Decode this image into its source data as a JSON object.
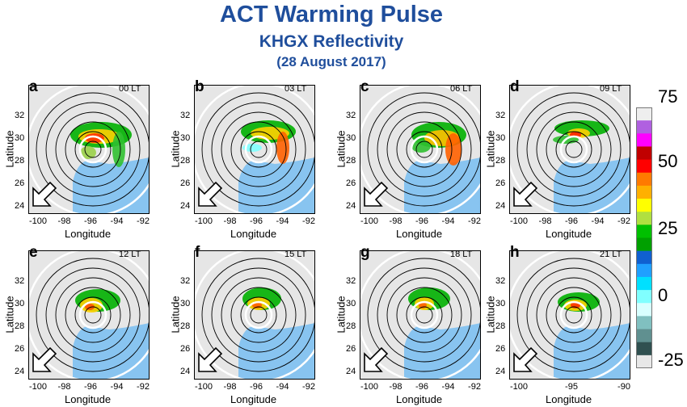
{
  "title": "ACT Warming Pulse",
  "subtitle": "KHGX Reflectivity",
  "date": "(28 August 2017)",
  "xlabel": "Longitude",
  "ylabel": "Latitude",
  "y_ticks": [
    "32",
    "30",
    "28",
    "26",
    "24"
  ],
  "colorbar": {
    "labels": [
      "75",
      "50",
      "25",
      "0",
      "-25"
    ],
    "colors": [
      "#eeeeee",
      "#b060e0",
      "#ff00ff",
      "#c00000",
      "#ff0000",
      "#ff7a00",
      "#ffb000",
      "#ffff00",
      "#b0e040",
      "#00c000",
      "#00a000",
      "#1060d0",
      "#20a0ff",
      "#00e0ff",
      "#80ffff",
      "#d8ffff",
      "#80c0c0",
      "#609090",
      "#305050",
      "#e8e8e8"
    ]
  },
  "panels": [
    {
      "letter": "a",
      "time": "00 LT",
      "x_ticks": [
        "-100",
        "-98",
        "-96",
        "-94",
        "-92"
      ]
    },
    {
      "letter": "b",
      "time": "03 LT",
      "x_ticks": [
        "-100",
        "-98",
        "-96",
        "-94",
        "-92"
      ]
    },
    {
      "letter": "c",
      "time": "06 LT",
      "x_ticks": [
        "-100",
        "-98",
        "-96",
        "-94",
        "-92"
      ]
    },
    {
      "letter": "d",
      "time": "09 LT",
      "x_ticks": [
        "-100",
        "-98",
        "-96",
        "-94",
        "-92"
      ]
    },
    {
      "letter": "e",
      "time": "12 LT",
      "x_ticks": [
        "-100",
        "-98",
        "-96",
        "-94",
        "-92"
      ]
    },
    {
      "letter": "f",
      "time": "15 LT",
      "x_ticks": [
        "-100",
        "-98",
        "-96",
        "-94",
        "-92"
      ]
    },
    {
      "letter": "g",
      "time": "18 LT",
      "x_ticks": [
        "-100",
        "-98",
        "-96",
        "-94",
        "-92"
      ]
    },
    {
      "letter": "h",
      "time": "21 LT",
      "x_ticks": [
        "-100",
        "-95",
        "-90"
      ]
    }
  ]
}
